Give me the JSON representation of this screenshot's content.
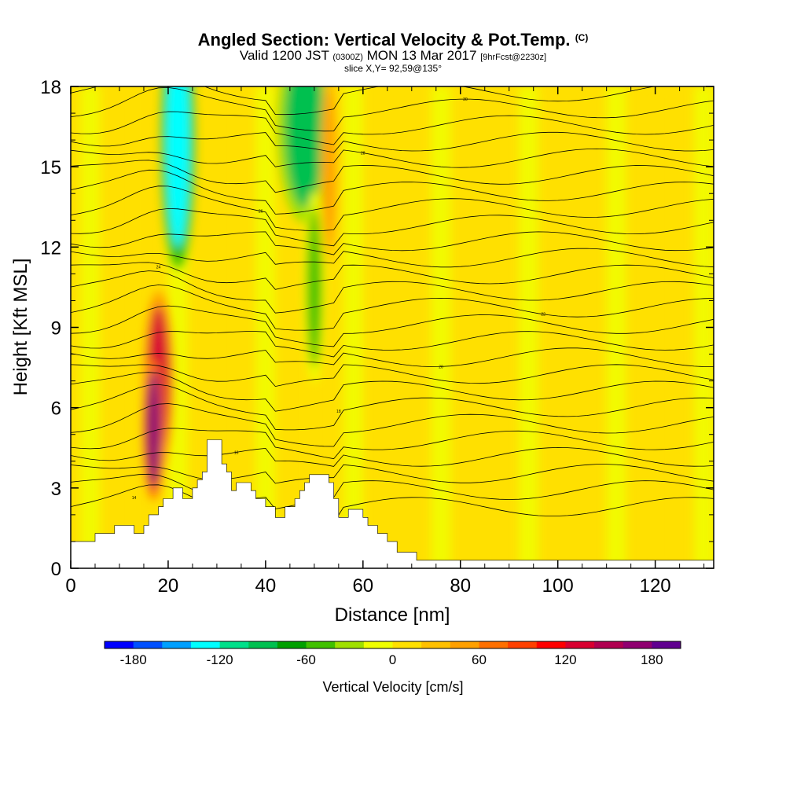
{
  "header": {
    "title": "Angled Section: Vertical Velocity & Pot.Temp.",
    "title_unit": "(C)",
    "valid_prefix": "Valid 1200 JST",
    "valid_utc": "(0300Z)",
    "valid_date": "MON 13 Mar 2017",
    "forecast": "[9hrFcst@2230z]",
    "slice": "slice X,Y= 92,59@135°"
  },
  "chart_data": {
    "type": "heatmap",
    "title": "Angled Section: Vertical Velocity & Pot.Temp. (C)",
    "xlabel": "Distance [nm]",
    "ylabel": "Height [Kft MSL]",
    "xlim": [
      0,
      132
    ],
    "ylim": [
      0,
      18
    ],
    "x_ticks": [
      "0",
      "20",
      "40",
      "60",
      "80",
      "100",
      "120"
    ],
    "y_ticks": [
      "0",
      "3",
      "6",
      "9",
      "12",
      "15",
      "18"
    ],
    "colorbar": {
      "title": "Vertical Velocity [cm/s]",
      "min": -200,
      "max": 200,
      "step": 20,
      "labels": [
        "-180",
        "-120",
        "-60",
        "0",
        "60",
        "120",
        "180"
      ],
      "colors": [
        "#0000ff",
        "#0050ff",
        "#00a0ff",
        "#00ffff",
        "#00e08a",
        "#00c050",
        "#00a000",
        "#40c000",
        "#a0e000",
        "#f0ff00",
        "#ffe000",
        "#ffc000",
        "#ffa000",
        "#ff7000",
        "#ff4000",
        "#ff0000",
        "#d80030",
        "#b00050",
        "#900070",
        "#600090"
      ]
    },
    "terrain_kft": [
      [
        0,
        1.0
      ],
      [
        5,
        1.0
      ],
      [
        5,
        1.3
      ],
      [
        9,
        1.3
      ],
      [
        9,
        1.6
      ],
      [
        13,
        1.6
      ],
      [
        13,
        1.3
      ],
      [
        15,
        1.3
      ],
      [
        15,
        1.6
      ],
      [
        16,
        1.6
      ],
      [
        16,
        2.0
      ],
      [
        18,
        2.0
      ],
      [
        18,
        2.3
      ],
      [
        19,
        2.3
      ],
      [
        19,
        2.6
      ],
      [
        21,
        2.6
      ],
      [
        21,
        3.0
      ],
      [
        23,
        3.0
      ],
      [
        23,
        2.6
      ],
      [
        25,
        2.6
      ],
      [
        25,
        3.0
      ],
      [
        26,
        3.0
      ],
      [
        26,
        3.3
      ],
      [
        27,
        3.3
      ],
      [
        27,
        3.6
      ],
      [
        28,
        3.6
      ],
      [
        28,
        4.8
      ],
      [
        31,
        4.8
      ],
      [
        31,
        3.9
      ],
      [
        32,
        3.9
      ],
      [
        32,
        3.6
      ],
      [
        33,
        3.6
      ],
      [
        33,
        2.9
      ],
      [
        34,
        2.9
      ],
      [
        34,
        3.2
      ],
      [
        37,
        3.2
      ],
      [
        37,
        2.9
      ],
      [
        38,
        2.9
      ],
      [
        38,
        2.6
      ],
      [
        40,
        2.6
      ],
      [
        40,
        2.3
      ],
      [
        42,
        2.3
      ],
      [
        42,
        1.9
      ],
      [
        44,
        1.9
      ],
      [
        44,
        2.3
      ],
      [
        46,
        2.3
      ],
      [
        46,
        2.6
      ],
      [
        47,
        2.6
      ],
      [
        47,
        2.9
      ],
      [
        48,
        2.9
      ],
      [
        48,
        3.2
      ],
      [
        49,
        3.2
      ],
      [
        49,
        3.5
      ],
      [
        53,
        3.5
      ],
      [
        53,
        3.2
      ],
      [
        54,
        3.2
      ],
      [
        54,
        2.6
      ],
      [
        55,
        2.6
      ],
      [
        55,
        1.9
      ],
      [
        57,
        1.9
      ],
      [
        57,
        2.2
      ],
      [
        60,
        2.2
      ],
      [
        60,
        1.9
      ],
      [
        61,
        1.9
      ],
      [
        61,
        1.6
      ],
      [
        63,
        1.6
      ],
      [
        63,
        1.3
      ],
      [
        65,
        1.3
      ],
      [
        65,
        1.0
      ],
      [
        67,
        1.0
      ],
      [
        67,
        0.6
      ],
      [
        71,
        0.6
      ],
      [
        71,
        0.3
      ],
      [
        132,
        0.3
      ]
    ],
    "wind_cells": [
      {
        "x": 18,
        "y": 7.0,
        "rx": 2.2,
        "ry": 2.8,
        "value": 130
      },
      {
        "x": 17,
        "y": 5.2,
        "rx": 1.5,
        "ry": 2.2,
        "value": 175
      },
      {
        "x": 22,
        "y": 16.0,
        "rx": 2.5,
        "ry": 4.0,
        "value": -130
      },
      {
        "x": 48,
        "y": 16.5,
        "rx": 4.0,
        "ry": 3.0,
        "value": -100
      },
      {
        "x": 50,
        "y": 10.5,
        "rx": 1.5,
        "ry": 3.0,
        "value": -50
      },
      {
        "x": 53,
        "y": 15.0,
        "rx": 1.2,
        "ry": 3.0,
        "value": 50
      }
    ],
    "isotherms_C": [
      "14",
      "16",
      "18",
      "20",
      "22",
      "24",
      "26",
      "28",
      "30"
    ]
  }
}
